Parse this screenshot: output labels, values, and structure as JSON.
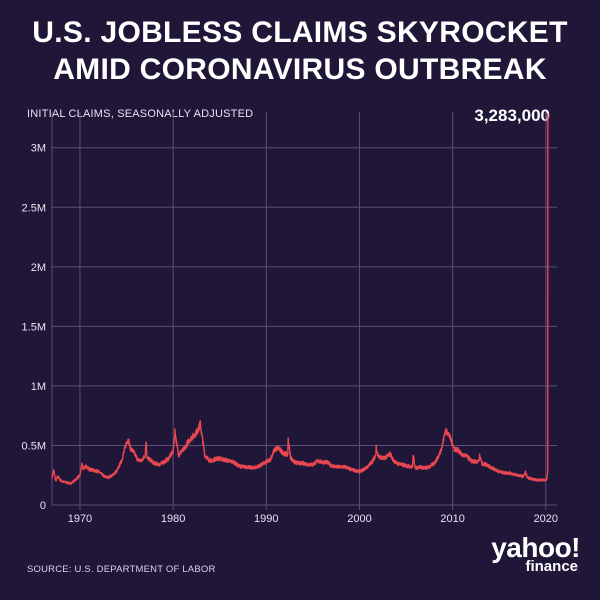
{
  "title_lines": [
    "U.S. JOBLESS CLAIMS SKYROCKET",
    "AMID CORONAVIRUS OUTBREAK"
  ],
  "subtitle": "INITIAL CLAIMS, SEASONALLY ADJUSTED",
  "callout_value": "3,283,000",
  "source": "SOURCE:  U.S. DEPARTMENT OF LABOR",
  "logo": {
    "line1": "yahoo!",
    "line2": "finance"
  },
  "colors": {
    "background": "#1f1638",
    "line": "#e8474f",
    "grid": "#5a4f78",
    "text": "#ffffff"
  },
  "chart_data": {
    "type": "line",
    "title": "U.S. JOBLESS CLAIMS SKYROCKET AMID CORONAVIRUS OUTBREAK",
    "subtitle": "INITIAL CLAIMS, SEASONALLY ADJUSTED",
    "xlabel": "",
    "ylabel": "",
    "xlim": [
      1967,
      2021.2
    ],
    "ylim": [
      0,
      3300000
    ],
    "grid": true,
    "x_ticks": [
      1970,
      1980,
      1990,
      2000,
      2010,
      2020
    ],
    "x_tick_labels": [
      "1970",
      "1980",
      "1990",
      "2000",
      "2010",
      "2020"
    ],
    "y_ticks": [
      0,
      500000,
      1000000,
      1500000,
      2000000,
      2500000,
      3000000
    ],
    "y_tick_labels": [
      "0",
      "0.5M",
      "1M",
      "1.5M",
      "2M",
      "2.5M",
      "3M"
    ],
    "annotations": [
      {
        "text": "3,283,000",
        "x": 2020.22,
        "y": 3283000
      }
    ],
    "series": [
      {
        "x": [
          1967.0,
          1967.2,
          1967.4,
          1967.6,
          1968.0,
          1968.5,
          1969.0,
          1969.5,
          1970.0,
          1970.2,
          1970.4,
          1970.6,
          1971.0,
          1971.5,
          1972.0,
          1972.3,
          1972.6,
          1973.0,
          1973.5,
          1974.0,
          1974.5,
          1974.8,
          1975.0,
          1975.2,
          1975.4,
          1975.8,
          1976.2,
          1976.6,
          1977.0,
          1977.1,
          1977.2,
          1977.5,
          1978.0,
          1978.5,
          1979.0,
          1979.5,
          1980.0,
          1980.2,
          1980.4,
          1980.6,
          1980.9,
          1981.2,
          1981.6,
          1981.9,
          1982.2,
          1982.5,
          1982.8,
          1982.9,
          1983.1,
          1983.4,
          1983.8,
          1984.2,
          1984.6,
          1985.0,
          1985.5,
          1986.0,
          1986.5,
          1987.0,
          1987.5,
          1988.0,
          1988.5,
          1989.0,
          1989.5,
          1990.0,
          1990.4,
          1990.8,
          1991.0,
          1991.3,
          1991.6,
          1992.0,
          1992.3,
          1992.35,
          1992.6,
          1993.0,
          1993.5,
          1994.0,
          1994.5,
          1995.0,
          1995.5,
          1996.0,
          1996.5,
          1997.0,
          1997.5,
          1998.0,
          1998.5,
          1999.0,
          1999.5,
          2000.0,
          2000.5,
          2001.0,
          2001.5,
          2001.75,
          2001.8,
          2002.0,
          2002.5,
          2003.0,
          2003.3,
          2003.6,
          2004.0,
          2004.5,
          2005.0,
          2005.7,
          2005.75,
          2006.0,
          2006.5,
          2007.0,
          2007.5,
          2008.0,
          2008.3,
          2008.6,
          2008.9,
          2009.2,
          2009.5,
          2009.8,
          2010.2,
          2010.6,
          2011.0,
          2011.5,
          2012.0,
          2012.5,
          2012.85,
          2012.9,
          2013.2,
          2013.6,
          2014.0,
          2014.5,
          2015.0,
          2015.5,
          2016.0,
          2016.5,
          2017.0,
          2017.5,
          2017.7,
          2017.8,
          2018.0,
          2018.5,
          2019.0,
          2019.5,
          2020.0,
          2020.1,
          2020.2,
          2020.22
        ],
        "values": [
          230000,
          290000,
          200000,
          240000,
          200000,
          190000,
          180000,
          210000,
          250000,
          340000,
          300000,
          330000,
          300000,
          290000,
          280000,
          260000,
          240000,
          230000,
          250000,
          290000,
          380000,
          470000,
          530000,
          550000,
          480000,
          440000,
          380000,
          370000,
          420000,
          540000,
          400000,
          380000,
          350000,
          340000,
          360000,
          390000,
          450000,
          620000,
          500000,
          420000,
          450000,
          470000,
          530000,
          560000,
          580000,
          610000,
          650000,
          690000,
          580000,
          420000,
          380000,
          370000,
          390000,
          390000,
          380000,
          370000,
          360000,
          330000,
          320000,
          320000,
          310000,
          320000,
          340000,
          360000,
          380000,
          450000,
          470000,
          480000,
          450000,
          430000,
          420000,
          550000,
          400000,
          360000,
          350000,
          350000,
          340000,
          340000,
          370000,
          360000,
          360000,
          330000,
          320000,
          320000,
          320000,
          300000,
          290000,
          280000,
          300000,
          330000,
          380000,
          420000,
          490000,
          410000,
          390000,
          410000,
          430000,
          380000,
          350000,
          340000,
          330000,
          320000,
          420000,
          310000,
          320000,
          310000,
          320000,
          350000,
          380000,
          430000,
          500000,
          620000,
          610000,
          550000,
          470000,
          460000,
          420000,
          410000,
          370000,
          360000,
          370000,
          410000,
          340000,
          340000,
          320000,
          300000,
          280000,
          270000,
          270000,
          260000,
          250000,
          240000,
          250000,
          280000,
          230000,
          220000,
          210000,
          210000,
          210000,
          211000,
          281000,
          3283000
        ]
      }
    ]
  }
}
